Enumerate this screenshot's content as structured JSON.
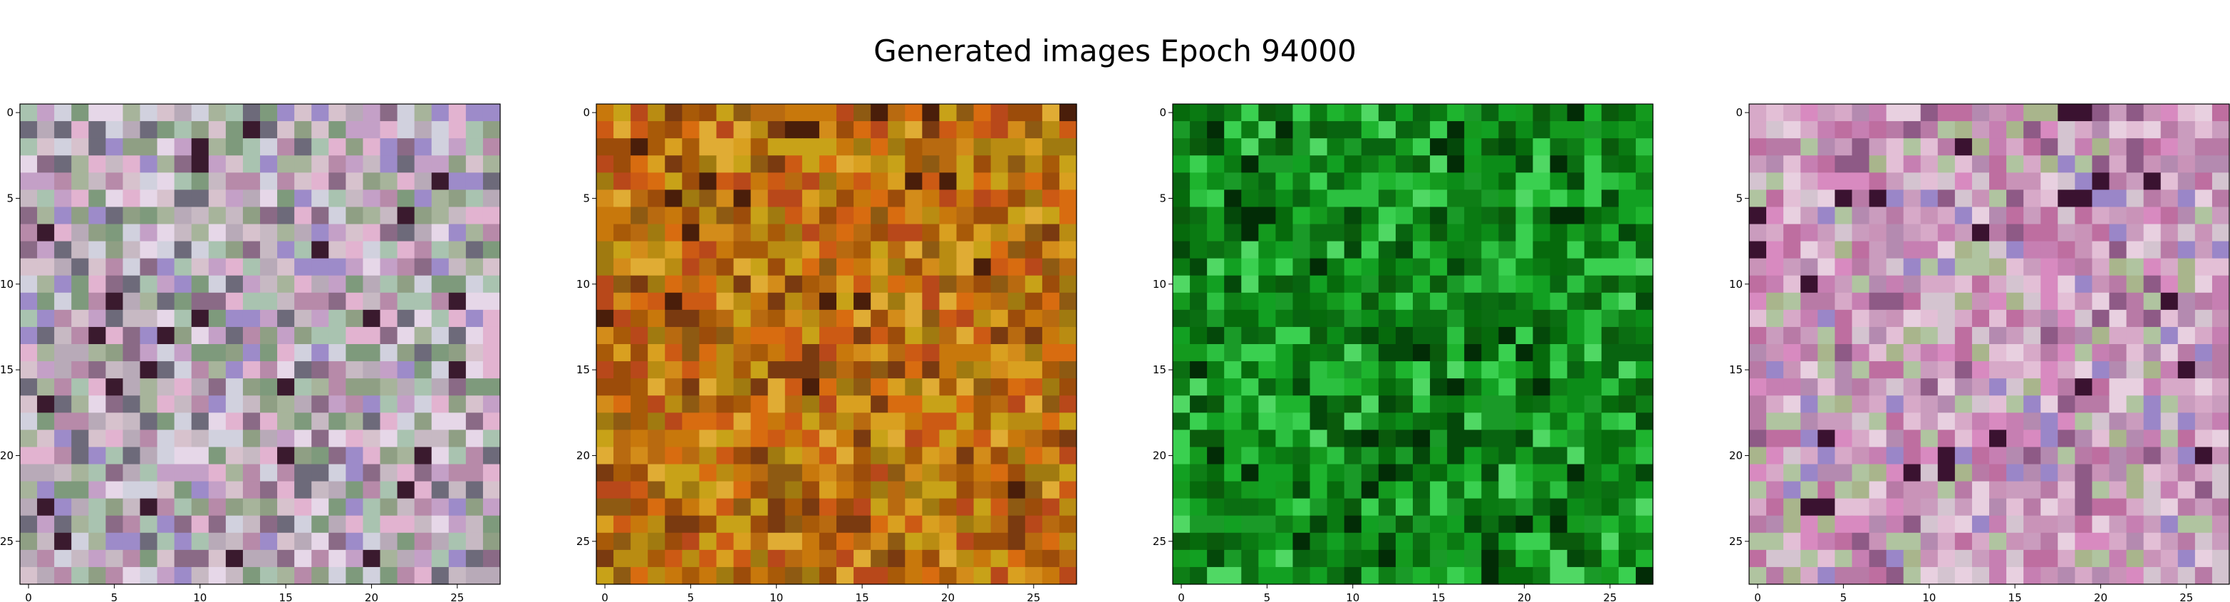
{
  "title": "Generated images Epoch 94000",
  "chart_data": [
    {
      "type": "heatmap",
      "xlim": [
        -0.5,
        27.5
      ],
      "ylim": [
        27.5,
        -0.5
      ],
      "x_ticks": [
        0,
        5,
        10,
        15,
        20,
        25
      ],
      "y_ticks": [
        0,
        5,
        10,
        15,
        20,
        25
      ],
      "x_tick_labels": [
        "0",
        "5",
        "10",
        "15",
        "20",
        "25"
      ],
      "y_tick_labels": [
        "0",
        "5",
        "10",
        "15",
        "20",
        "25"
      ],
      "grid": false,
      "size": 28,
      "palette": [
        "#c7b9c3",
        "#b8aab8",
        "#a7b49b",
        "#d7c2cd",
        "#8f9f84",
        "#c4a0c7",
        "#e6d7e8",
        "#a9c3b0",
        "#8a6a86",
        "#d1d1de",
        "#b78aa9",
        "#9d8bc9",
        "#6d6a7a",
        "#e2b3d0",
        "#7e9a7c",
        "#3a1a2e"
      ]
    },
    {
      "type": "heatmap",
      "xlim": [
        -0.5,
        27.5
      ],
      "ylim": [
        27.5,
        -0.5
      ],
      "x_ticks": [
        0,
        5,
        10,
        15,
        20,
        25
      ],
      "y_ticks": [
        0,
        5,
        10,
        15,
        20,
        25
      ],
      "x_tick_labels": [
        "0",
        "5",
        "10",
        "15",
        "20",
        "25"
      ],
      "y_tick_labels": [
        "0",
        "5",
        "10",
        "15",
        "20",
        "25"
      ],
      "grid": false,
      "size": 28,
      "palette": [
        "#c8780c",
        "#b86a10",
        "#d38c1a",
        "#a85a08",
        "#b98c12",
        "#d9a020",
        "#9c4c0a",
        "#cc5a14",
        "#c8a218",
        "#8e5a12",
        "#e0ac34",
        "#b8481a",
        "#7a3a10",
        "#d86c10",
        "#a07a10",
        "#4a1e0a"
      ]
    },
    {
      "type": "heatmap",
      "xlim": [
        -0.5,
        27.5
      ],
      "ylim": [
        27.5,
        -0.5
      ],
      "x_ticks": [
        0,
        5,
        10,
        15,
        20,
        25
      ],
      "y_ticks": [
        0,
        5,
        10,
        15,
        20,
        25
      ],
      "x_tick_labels": [
        "0",
        "5",
        "10",
        "15",
        "20",
        "25"
      ],
      "y_tick_labels": [
        "0",
        "5",
        "10",
        "15",
        "20",
        "25"
      ],
      "grid": false,
      "size": 28,
      "palette": [
        "#0a7a12",
        "#0c8c18",
        "#086410",
        "#12a022",
        "#1eb42e",
        "#0a5a0c",
        "#2cc040",
        "#149a1e",
        "#066a0c",
        "#3ad050",
        "#0e7e16",
        "#04480a",
        "#1a9a28",
        "#50d864",
        "#0b6e12",
        "#022c06"
      ]
    },
    {
      "type": "heatmap",
      "xlim": [
        -0.5,
        27.5
      ],
      "ylim": [
        27.5,
        -0.5
      ],
      "x_ticks": [
        0,
        5,
        10,
        15,
        20,
        25
      ],
      "y_ticks": [
        0,
        5,
        10,
        15,
        20,
        25
      ],
      "x_tick_labels": [
        "0",
        "5",
        "10",
        "15",
        "20",
        "25"
      ],
      "y_tick_labels": [
        "0",
        "5",
        "10",
        "15",
        "20",
        "25"
      ],
      "grid": false,
      "size": 28,
      "palette": [
        "#c993b8",
        "#d7a9c8",
        "#b87aa6",
        "#e3bfd6",
        "#c67fb2",
        "#a9b58c",
        "#d4c4d0",
        "#be6ea0",
        "#e8d0e0",
        "#b48ab0",
        "#9a86c8",
        "#ca9cbe",
        "#d88ac0",
        "#8e5a86",
        "#b0c4a0",
        "#3a1230"
      ]
    }
  ]
}
